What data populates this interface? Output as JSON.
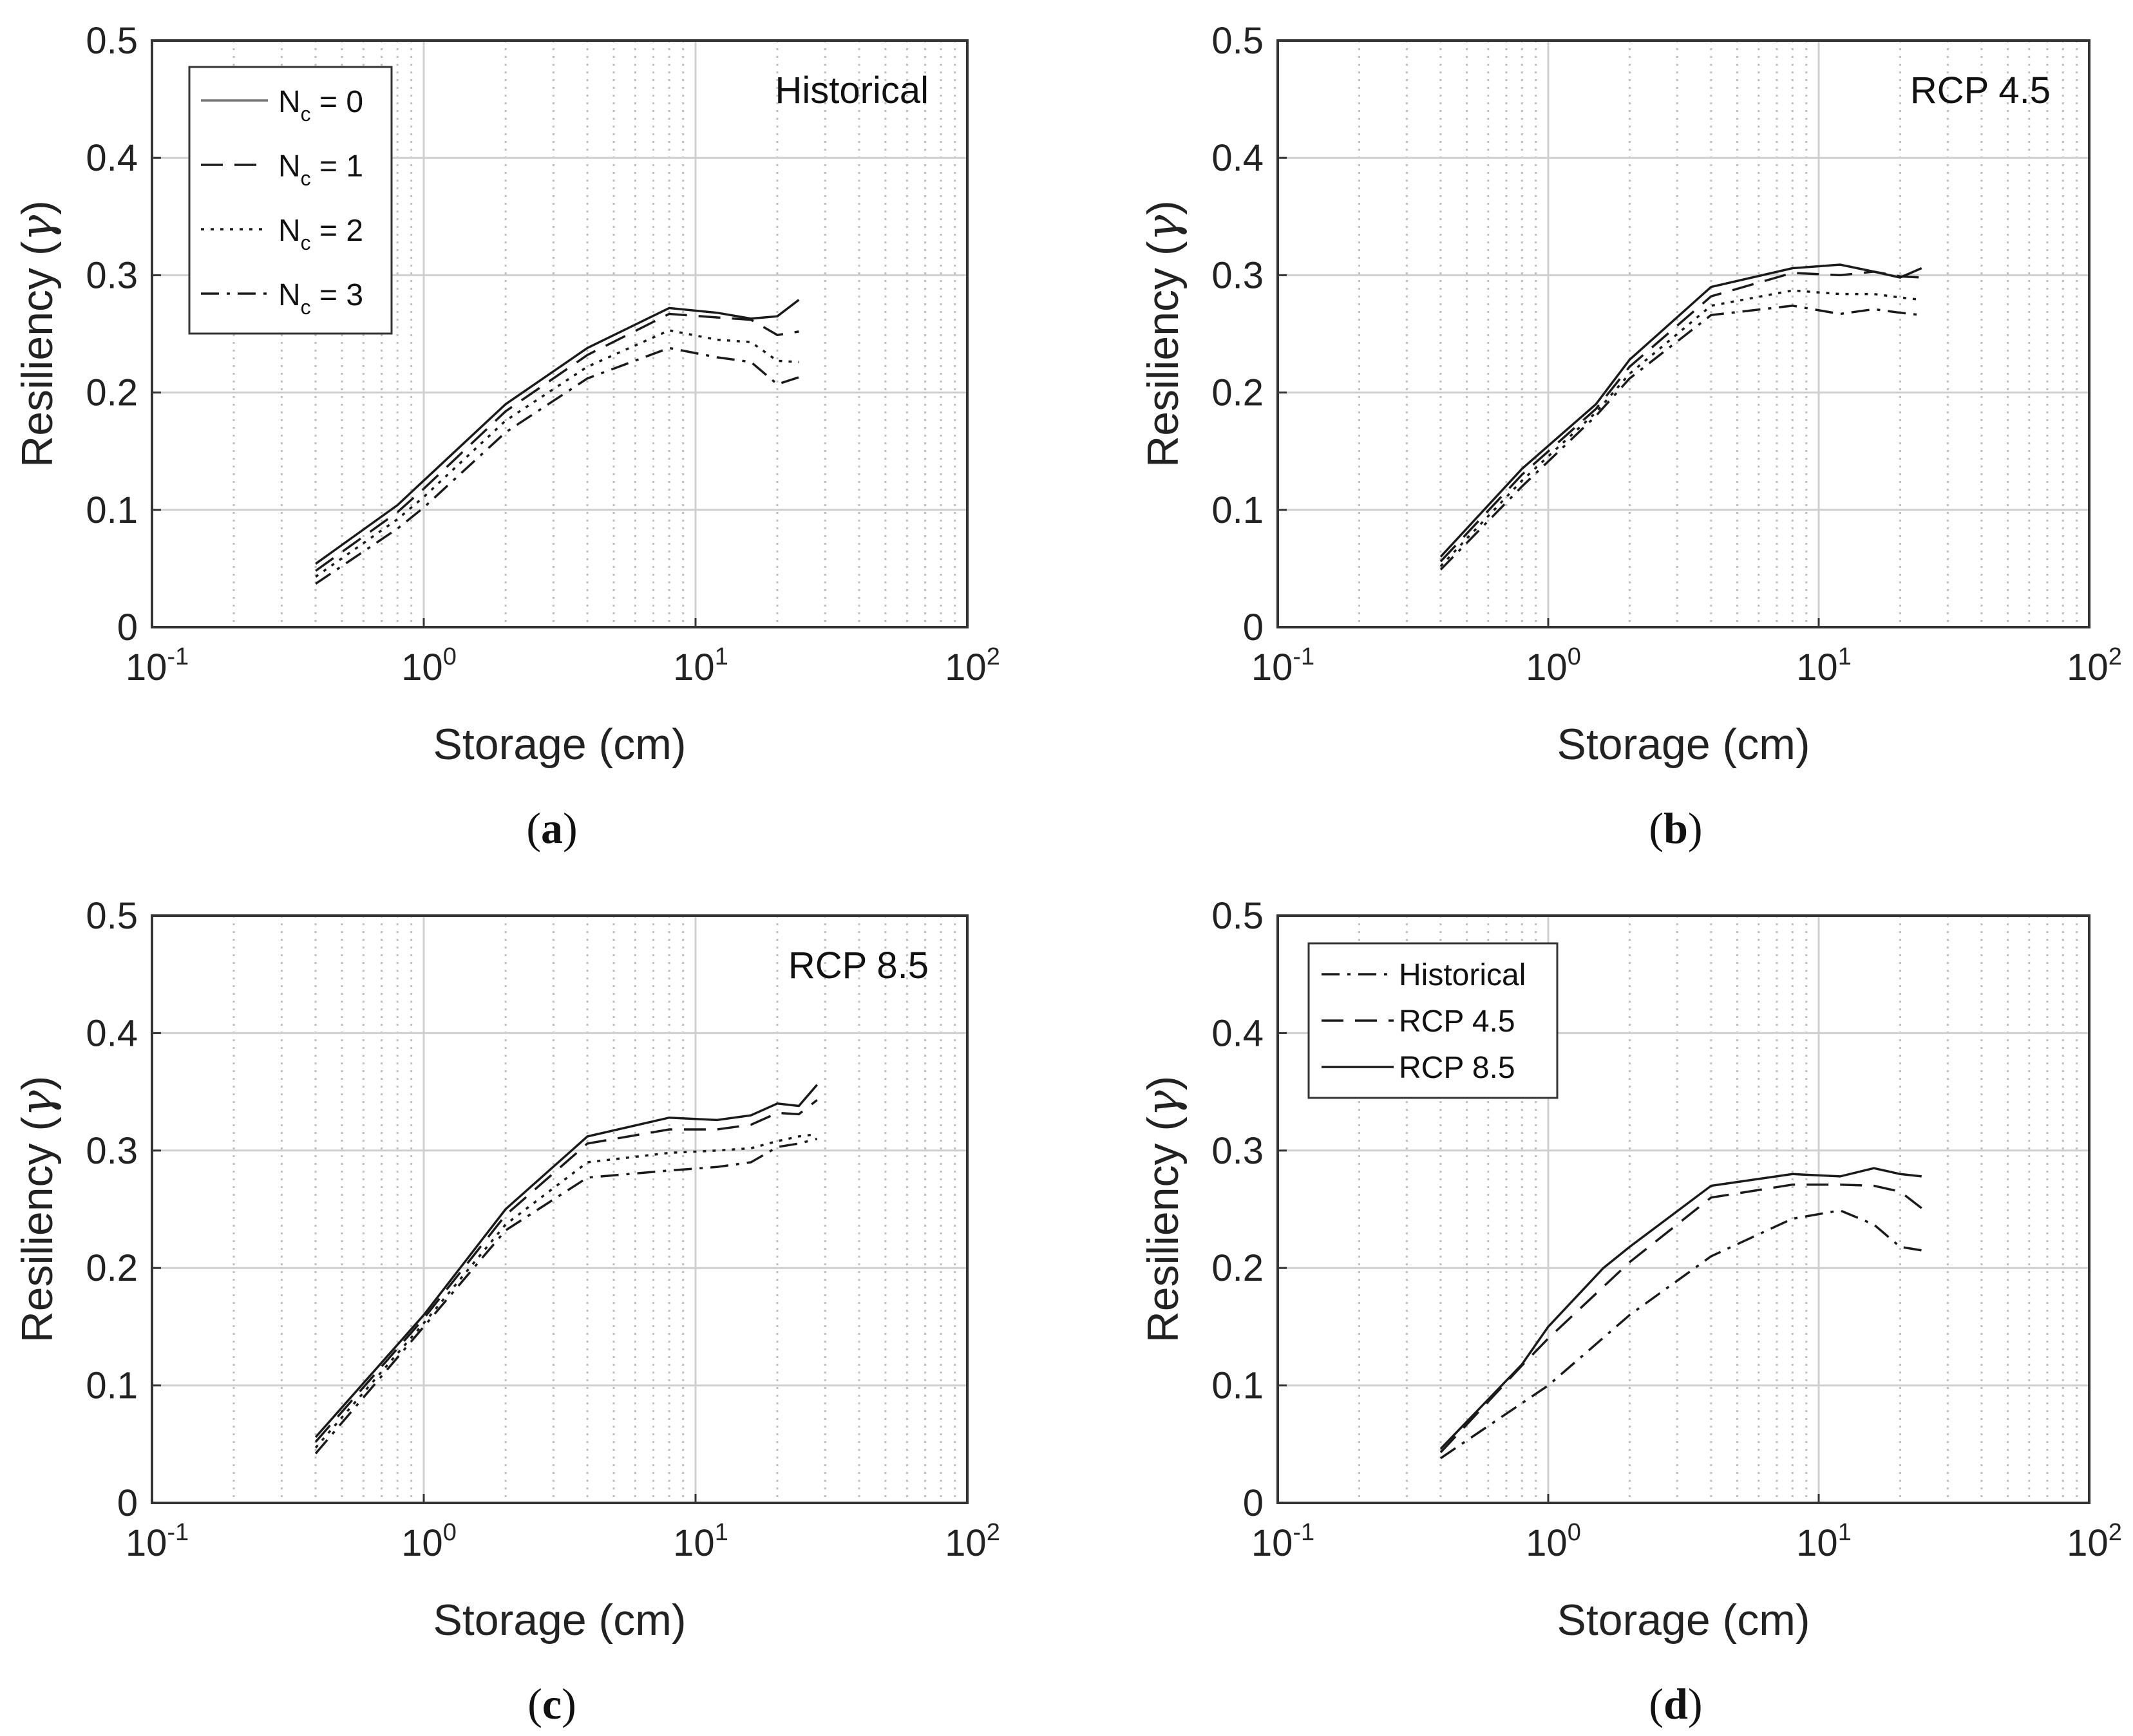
{
  "figure": {
    "x_ticks": [
      "10",
      "10",
      "10",
      "10"
    ],
    "x_tick_exponents": [
      "-1",
      "0",
      "1",
      "2"
    ],
    "y_ticks": [
      "0",
      "0.1",
      "0.2",
      "0.3",
      "0.4",
      "0.5"
    ]
  },
  "chart_data": [
    {
      "id": "a",
      "type": "line",
      "caption_open": "(",
      "caption_letter": "a",
      "caption_close": ")",
      "annotation": "Historical",
      "xlabel": "Storage (cm)",
      "ylabel_text": "Resiliency (",
      "ylabel_symbol": "γ",
      "ylabel_close": ")",
      "xscale": "log",
      "xlim": [
        0.1,
        100
      ],
      "ylim": [
        0,
        0.5
      ],
      "grid": true,
      "legend_position": "top-left",
      "series": [
        {
          "name": "N",
          "name_sub": "c",
          "name_suffix": " = 0",
          "dash": "solid",
          "color": "#777777",
          "x": [
            0.4,
            0.8,
            1,
            2,
            4,
            8,
            12,
            16,
            20,
            24
          ],
          "y": [
            0.054,
            0.104,
            0.125,
            0.19,
            0.238,
            0.272,
            0.268,
            0.263,
            0.265,
            0.279
          ]
        },
        {
          "name": "N",
          "name_sub": "c",
          "name_suffix": " = 1",
          "dash": "dashed",
          "color": "#1a1a1a",
          "x": [
            0.4,
            0.8,
            1,
            2,
            4,
            8,
            12,
            16,
            20,
            24
          ],
          "y": [
            0.048,
            0.098,
            0.118,
            0.184,
            0.232,
            0.267,
            0.264,
            0.262,
            0.249,
            0.252
          ]
        },
        {
          "name": "N",
          "name_sub": "c",
          "name_suffix": " = 2",
          "dash": "dotted",
          "color": "#1a1a1a",
          "x": [
            0.4,
            0.8,
            1,
            2,
            4,
            8,
            12,
            16,
            20,
            24
          ],
          "y": [
            0.043,
            0.092,
            0.111,
            0.176,
            0.222,
            0.253,
            0.245,
            0.243,
            0.227,
            0.226
          ]
        },
        {
          "name": "N",
          "name_sub": "c",
          "name_suffix": " = 3",
          "dash": "dashdot",
          "color": "#1a1a1a",
          "x": [
            0.4,
            0.8,
            1,
            2,
            4,
            8,
            12,
            16,
            20,
            24
          ],
          "y": [
            0.037,
            0.084,
            0.102,
            0.166,
            0.212,
            0.238,
            0.23,
            0.226,
            0.207,
            0.213
          ]
        }
      ]
    },
    {
      "id": "b",
      "type": "line",
      "caption_open": "(",
      "caption_letter": "b",
      "caption_close": ")",
      "annotation": "RCP 4.5",
      "xlabel": "Storage (cm)",
      "ylabel_text": "Resiliency (",
      "ylabel_symbol": "γ",
      "ylabel_close": ")",
      "xscale": "log",
      "xlim": [
        0.1,
        100
      ],
      "ylim": [
        0,
        0.5
      ],
      "grid": true,
      "series": [
        {
          "dash": "solid",
          "color": "#1a1a1a",
          "x": [
            0.4,
            0.8,
            1.5,
            2,
            4,
            8,
            12,
            16,
            20,
            24
          ],
          "y": [
            0.06,
            0.135,
            0.19,
            0.228,
            0.29,
            0.306,
            0.309,
            0.303,
            0.298,
            0.306
          ]
        },
        {
          "dash": "dashed",
          "color": "#1a1a1a",
          "x": [
            0.4,
            0.8,
            1.5,
            2,
            4,
            8,
            12,
            16,
            20,
            24
          ],
          "y": [
            0.056,
            0.13,
            0.186,
            0.222,
            0.282,
            0.302,
            0.3,
            0.303,
            0.299,
            0.298
          ]
        },
        {
          "dash": "dotted",
          "color": "#1a1a1a",
          "x": [
            0.4,
            0.8,
            1.5,
            2,
            4,
            8,
            12,
            16,
            20,
            24
          ],
          "y": [
            0.052,
            0.125,
            0.183,
            0.216,
            0.274,
            0.287,
            0.284,
            0.284,
            0.281,
            0.279
          ]
        },
        {
          "dash": "dashdot",
          "color": "#1a1a1a",
          "x": [
            0.4,
            0.8,
            1.5,
            2,
            4,
            8,
            12,
            16,
            20,
            24
          ],
          "y": [
            0.049,
            0.12,
            0.18,
            0.212,
            0.266,
            0.274,
            0.267,
            0.271,
            0.268,
            0.266
          ]
        }
      ]
    },
    {
      "id": "c",
      "type": "line",
      "caption_open": "(",
      "caption_letter": "c",
      "caption_close": ")",
      "annotation": "RCP 8.5",
      "xlabel": "Storage (cm)",
      "ylabel_text": "Resiliency (",
      "ylabel_symbol": "γ",
      "ylabel_close": ")",
      "xscale": "log",
      "xlim": [
        0.1,
        100
      ],
      "ylim": [
        0,
        0.5
      ],
      "grid": true,
      "series": [
        {
          "dash": "solid",
          "color": "#1a1a1a",
          "x": [
            0.4,
            1,
            2,
            4,
            8,
            12,
            16,
            20,
            24,
            28
          ],
          "y": [
            0.056,
            0.16,
            0.25,
            0.312,
            0.328,
            0.326,
            0.33,
            0.34,
            0.338,
            0.356
          ]
        },
        {
          "dash": "dashed",
          "color": "#1a1a1a",
          "x": [
            0.4,
            1,
            2,
            4,
            8,
            12,
            16,
            20,
            24,
            28
          ],
          "y": [
            0.052,
            0.157,
            0.245,
            0.306,
            0.318,
            0.318,
            0.322,
            0.332,
            0.331,
            0.343
          ]
        },
        {
          "dash": "dotted",
          "color": "#1a1a1a",
          "x": [
            0.4,
            1,
            2,
            4,
            8,
            12,
            16,
            20,
            24,
            28
          ],
          "y": [
            0.047,
            0.153,
            0.237,
            0.29,
            0.298,
            0.3,
            0.302,
            0.308,
            0.312,
            0.314
          ]
        },
        {
          "dash": "dashdot",
          "color": "#1a1a1a",
          "x": [
            0.4,
            1,
            2,
            4,
            8,
            12,
            16,
            20,
            24,
            28
          ],
          "y": [
            0.042,
            0.15,
            0.232,
            0.277,
            0.283,
            0.286,
            0.29,
            0.303,
            0.306,
            0.31
          ]
        }
      ]
    },
    {
      "id": "d",
      "type": "line",
      "caption_open": "(",
      "caption_letter": "d",
      "caption_close": ")",
      "annotation": "",
      "xlabel": "Storage (cm)",
      "ylabel_text": "Resiliency (",
      "ylabel_symbol": "γ",
      "ylabel_close": ")",
      "xscale": "log",
      "xlim": [
        0.1,
        100
      ],
      "ylim": [
        0,
        0.5
      ],
      "grid": true,
      "legend_position": "top-left",
      "series": [
        {
          "name": "Historical",
          "dash": "dashdot",
          "color": "#1a1a1a",
          "x": [
            0.4,
            0.8,
            1,
            2,
            4,
            8,
            12,
            16,
            20,
            24
          ],
          "y": [
            0.038,
            0.085,
            0.1,
            0.16,
            0.21,
            0.242,
            0.249,
            0.237,
            0.218,
            0.215
          ]
        },
        {
          "name": "RCP 4.5",
          "dash": "dashed",
          "color": "#1a1a1a",
          "x": [
            0.4,
            0.8,
            1,
            2,
            4,
            8,
            12,
            16,
            20,
            24
          ],
          "y": [
            0.043,
            0.117,
            0.14,
            0.205,
            0.26,
            0.271,
            0.271,
            0.27,
            0.265,
            0.251
          ]
        },
        {
          "name": "RCP 8.5",
          "dash": "solid",
          "color": "#1a1a1a",
          "x": [
            0.4,
            0.8,
            1,
            1.6,
            2,
            4,
            8,
            12,
            16,
            20,
            24
          ],
          "y": [
            0.046,
            0.118,
            0.15,
            0.2,
            0.218,
            0.27,
            0.28,
            0.278,
            0.285,
            0.28,
            0.278
          ]
        }
      ]
    }
  ]
}
